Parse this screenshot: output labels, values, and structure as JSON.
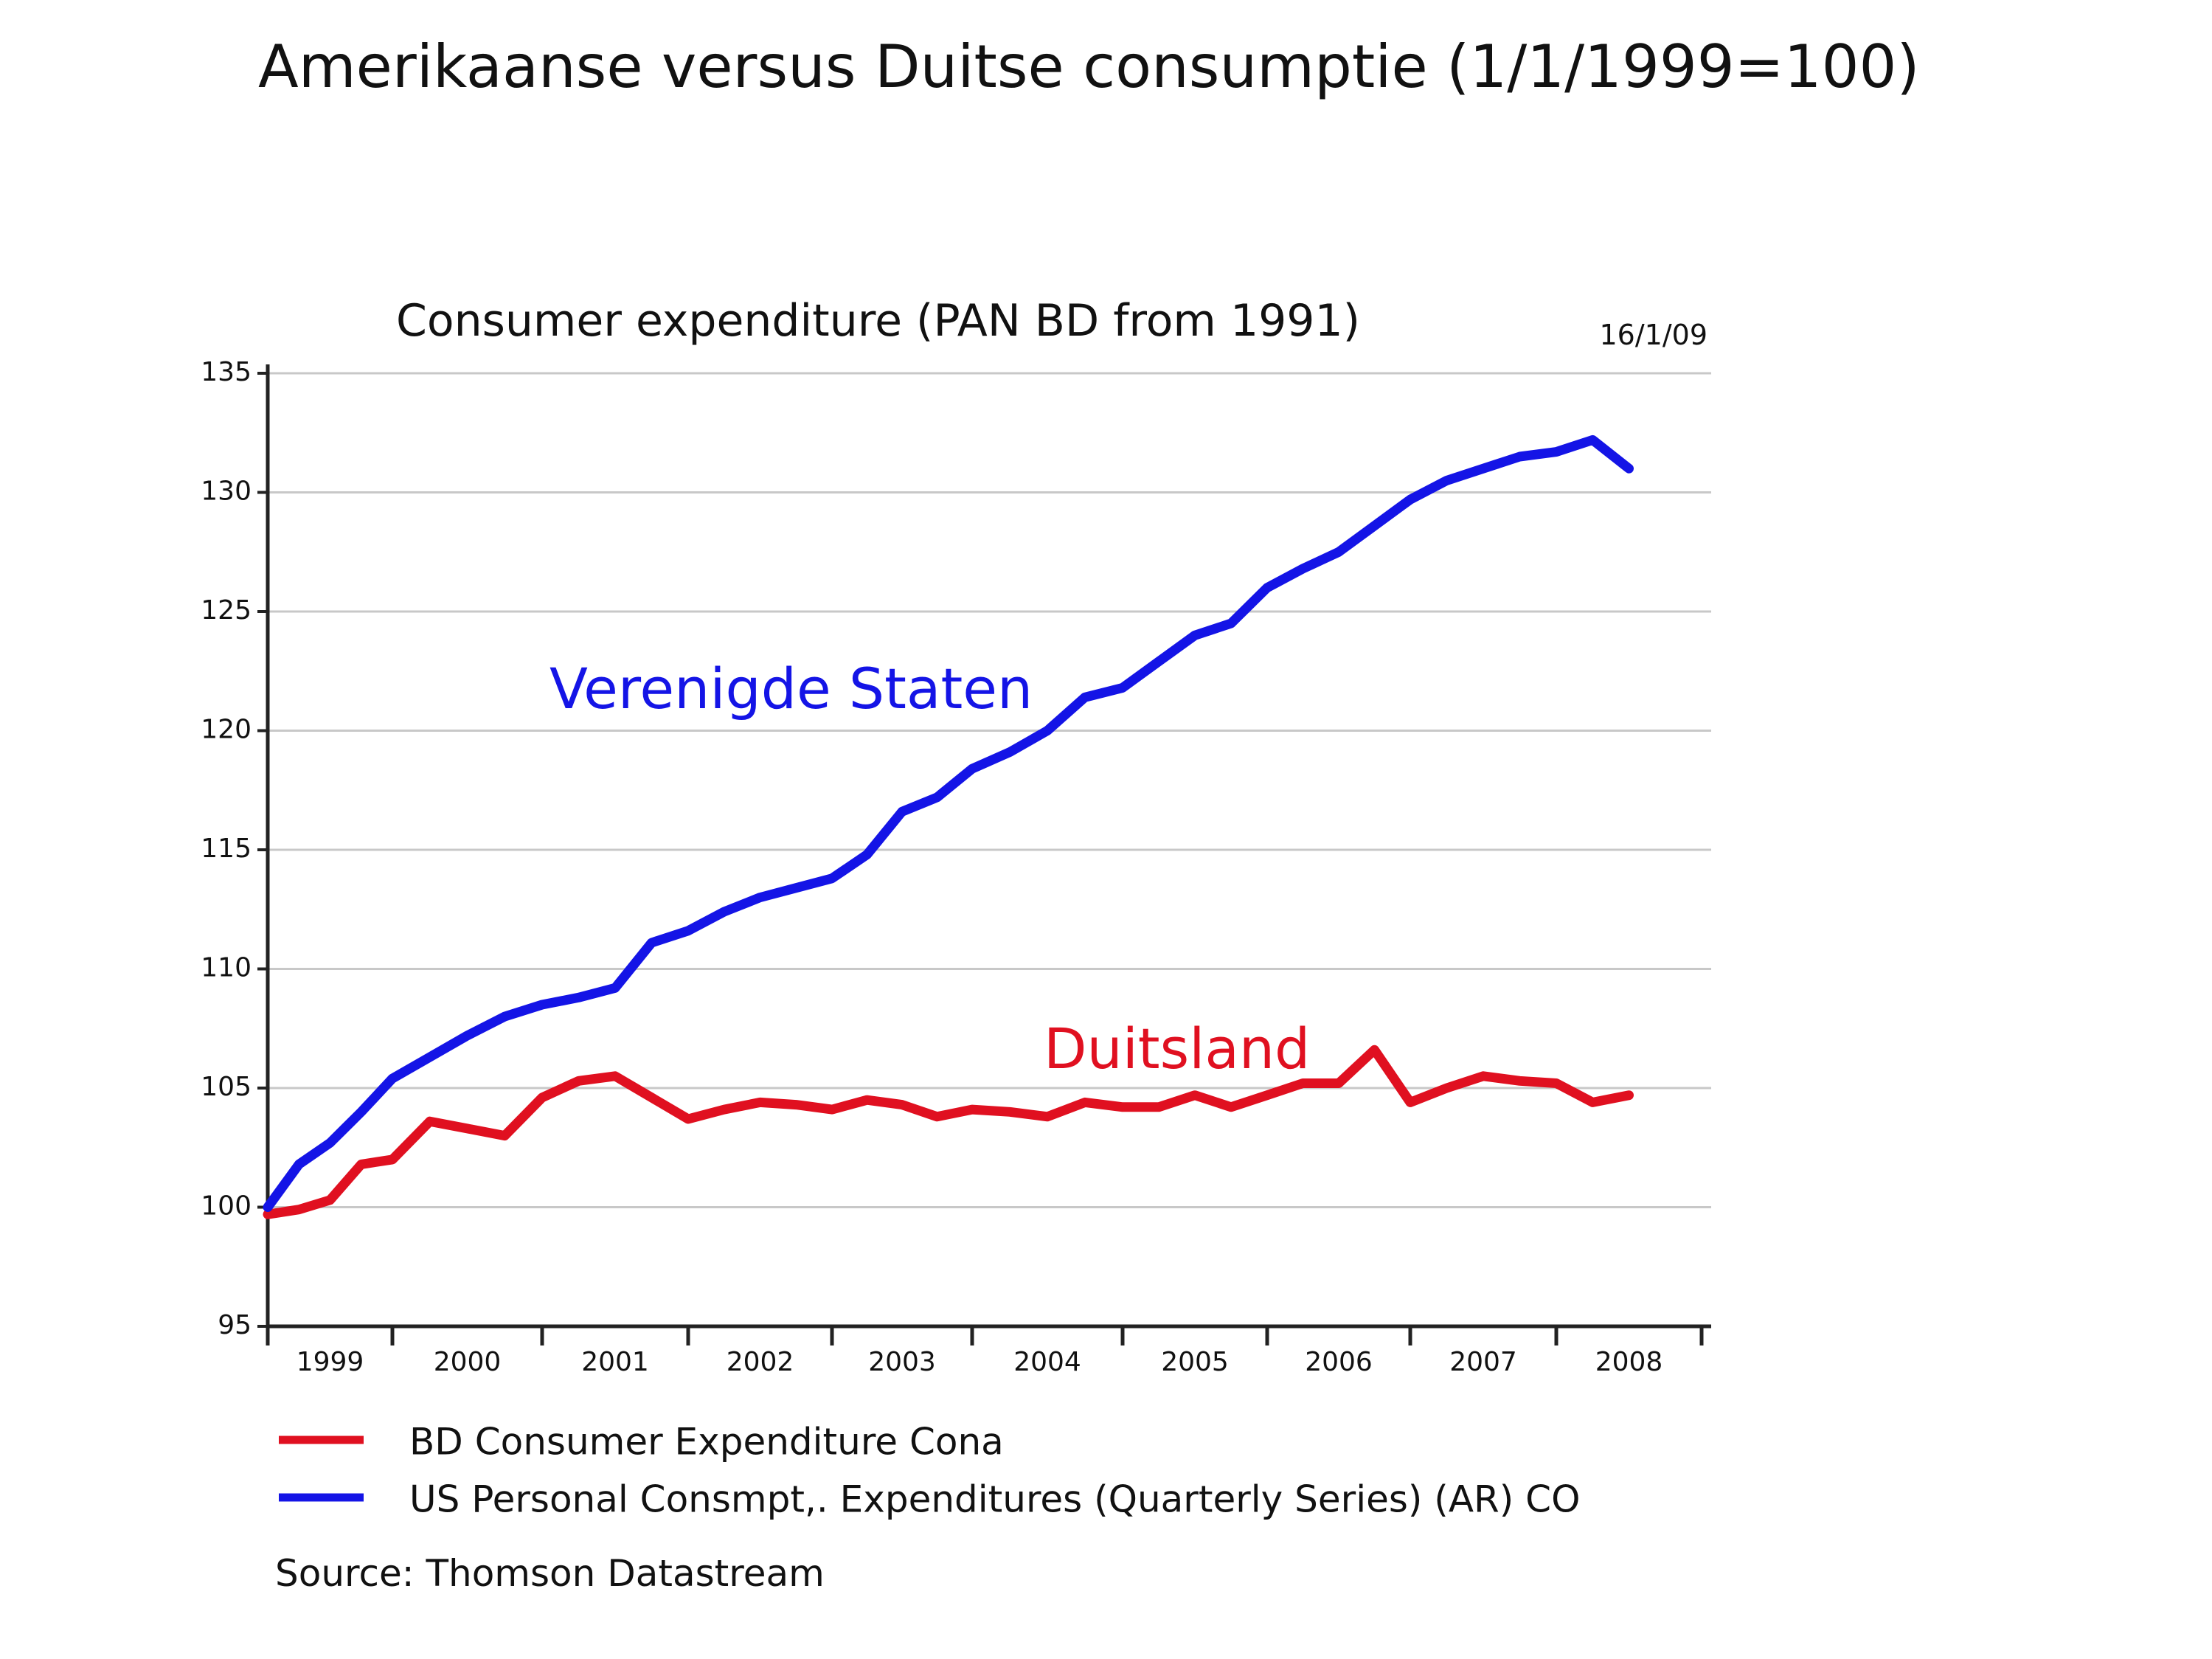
{
  "page": {
    "title": "Amerikaanse versus Duitse consumptie (1/1/1999=100)"
  },
  "chart_data": {
    "type": "line",
    "title": "Consumer expenditure (PAN BD from 1991)",
    "date_stamp": "16/1/09",
    "xlabel": "",
    "ylabel": "",
    "x_start": 1999.0,
    "x_step": 0.25,
    "xlim": [
      1999,
      2009
    ],
    "ylim": [
      95,
      135
    ],
    "y_ticks": [
      95,
      100,
      105,
      110,
      115,
      120,
      125,
      130,
      135
    ],
    "x_tick_labels": [
      "1999",
      "2000",
      "2001",
      "2002",
      "2003",
      "2004",
      "2005",
      "2006",
      "2007",
      "2008"
    ],
    "grid": true,
    "series": [
      {
        "name": "US Personal Consmpt,. Expenditures (Quarterly Series) (AR) CO",
        "annotation": "Verenigde Staten",
        "color": "#1414e6",
        "values": [
          100.0,
          101.8,
          102.7,
          104.0,
          105.4,
          106.3,
          107.2,
          108.0,
          108.5,
          108.8,
          109.2,
          111.1,
          111.6,
          112.4,
          113.0,
          113.4,
          113.8,
          114.8,
          116.6,
          117.2,
          118.4,
          119.1,
          120.0,
          121.4,
          121.8,
          122.9,
          124.0,
          124.5,
          126.0,
          126.8,
          127.5,
          128.6,
          129.7,
          130.5,
          131.0,
          131.5,
          131.7,
          132.2,
          131.0
        ]
      },
      {
        "name": "BD Consumer Expenditure Cona",
        "annotation": "Duitsland",
        "color": "#e01020",
        "values": [
          99.7,
          99.9,
          100.3,
          101.8,
          102.0,
          103.6,
          103.3,
          103.0,
          104.6,
          105.3,
          105.5,
          104.6,
          103.7,
          104.1,
          104.4,
          104.3,
          104.1,
          104.5,
          104.3,
          103.8,
          104.1,
          104.0,
          103.8,
          104.4,
          104.2,
          104.2,
          104.7,
          104.2,
          104.7,
          105.2,
          105.2,
          106.6,
          104.4,
          105.0,
          105.5,
          105.3,
          105.2,
          104.4,
          104.7
        ]
      }
    ],
    "legend_placement": "bottom-left",
    "source": "Source: Thomson Datastream"
  }
}
